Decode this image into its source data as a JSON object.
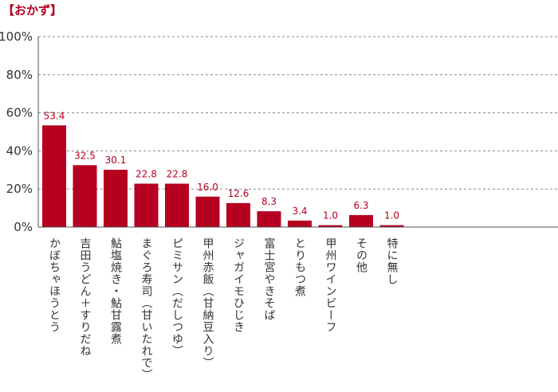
{
  "title": "【おかず】",
  "colors": {
    "bar": "#b5001f",
    "label": "#b5001f",
    "grid": "#888888",
    "axis": "#555555",
    "text": "#333333"
  },
  "chart_data": {
    "type": "bar",
    "title": "【おかず】",
    "xlabel": "",
    "ylabel": "",
    "ylim": [
      0,
      100
    ],
    "yticks": [
      "0%",
      "20%",
      "40%",
      "60%",
      "80%",
      "100%"
    ],
    "grid": true,
    "categories": [
      "かぼちゃほうとう",
      "吉田うどん＋すりだね",
      "鮎塩焼き・鮎甘露煮",
      "まぐろ寿司（甘いたれで）",
      "ピミサン（だしつゆ）",
      "甲州赤飯（甘納豆入り）",
      "ジャガイモひじき",
      "富士宮やきそば",
      "とりもつ煮",
      "甲州ワインビーフ",
      "その他",
      "特に無し"
    ],
    "values": [
      53.4,
      32.5,
      30.1,
      22.8,
      22.8,
      16.0,
      12.6,
      8.3,
      3.4,
      1.0,
      6.3,
      1.0
    ],
    "value_labels": [
      "53.4",
      "32.5",
      "30.1",
      "22.8",
      "22.8",
      "16.0",
      "12.6",
      "8.3",
      "3.4",
      "1.0",
      "6.3",
      "1.0"
    ]
  }
}
